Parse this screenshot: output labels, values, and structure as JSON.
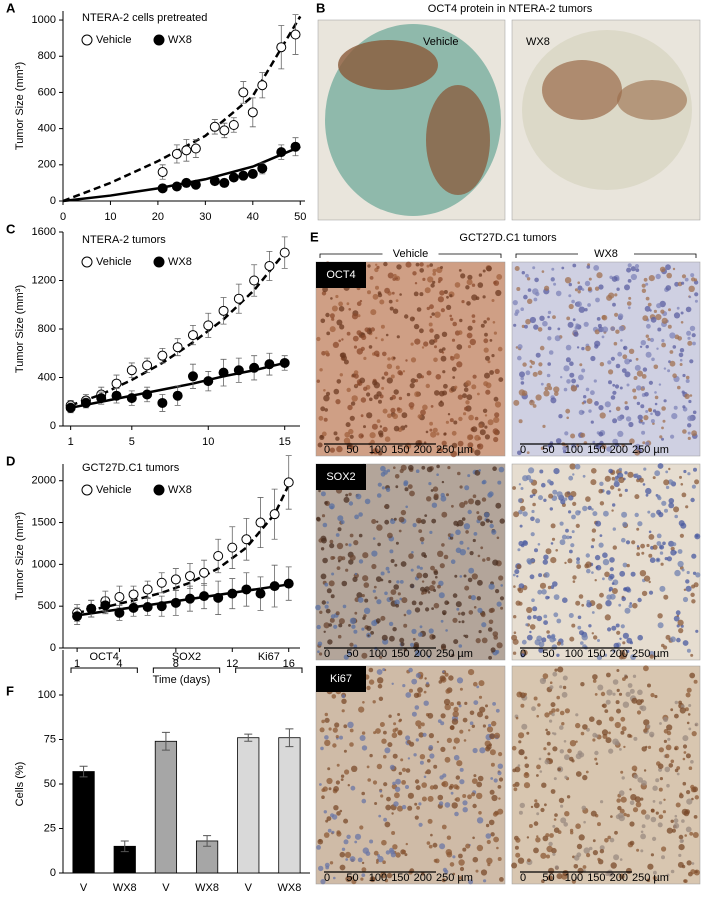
{
  "chart_data": [
    {
      "type": "scatter",
      "panel": "A",
      "legend_title": "NTERA-2 cells pretreated",
      "y_label": "Tumor Size (mm³)",
      "x": [
        21,
        24,
        26,
        28,
        32,
        34,
        36,
        38,
        40,
        42,
        46,
        49
      ],
      "series": [
        {
          "name": "Vehicle",
          "color": "#ffffff",
          "values": [
            160,
            260,
            280,
            290,
            410,
            390,
            420,
            600,
            490,
            640,
            850,
            920
          ],
          "errors": [
            40,
            50,
            60,
            50,
            40,
            40,
            40,
            60,
            80,
            70,
            120,
            110
          ],
          "fit": {
            "style": "dashed",
            "x": [
              0,
              10,
              20,
              30,
              40,
              50
            ],
            "values": [
              0,
              100,
              220,
              360,
              580,
              1020
            ]
          }
        },
        {
          "name": "WX8",
          "color": "#000000",
          "values": [
            70,
            80,
            100,
            90,
            110,
            100,
            130,
            140,
            150,
            180,
            270,
            300
          ],
          "errors": [
            20,
            20,
            20,
            20,
            20,
            20,
            20,
            20,
            20,
            30,
            40,
            50
          ],
          "fit": {
            "style": "solid",
            "x": [
              0,
              10,
              20,
              30,
              40,
              50
            ],
            "values": [
              0,
              30,
              70,
              120,
              190,
              300
            ]
          }
        }
      ],
      "xlim": [
        0,
        51
      ],
      "xticks": [
        0,
        10,
        20,
        30,
        40,
        50
      ],
      "ylim": [
        0,
        1050
      ],
      "yticks": [
        0,
        200,
        400,
        600,
        800,
        1000
      ]
    },
    {
      "type": "scatter",
      "panel": "C",
      "legend_title": "NTERA-2 tumors",
      "y_label": "Tumor Size (mm³)",
      "x": [
        1,
        2,
        3,
        4,
        5,
        6,
        7,
        8,
        9,
        10,
        11,
        12,
        13,
        14,
        15
      ],
      "series": [
        {
          "name": "Vehicle",
          "color": "#ffffff",
          "values": [
            170,
            210,
            260,
            350,
            460,
            500,
            580,
            650,
            750,
            830,
            950,
            1050,
            1200,
            1320,
            1430
          ],
          "errors": [
            40,
            50,
            60,
            70,
            60,
            60,
            60,
            70,
            80,
            100,
            110,
            120,
            130,
            120,
            130
          ],
          "fit": {
            "style": "dashed",
            "x": [
              1,
              3,
              5,
              7,
              9,
              11,
              13,
              15
            ],
            "values": [
              170,
              260,
              380,
              520,
              690,
              880,
              1120,
              1430
            ]
          }
        },
        {
          "name": "WX8",
          "color": "#000000",
          "values": [
            150,
            190,
            230,
            250,
            230,
            260,
            190,
            250,
            410,
            370,
            440,
            460,
            480,
            510,
            520
          ],
          "errors": [
            40,
            40,
            50,
            60,
            60,
            60,
            70,
            80,
            100,
            80,
            110,
            100,
            100,
            90,
            60
          ],
          "fit": {
            "style": "solid",
            "x": [
              1,
              3,
              5,
              7,
              9,
              11,
              13,
              15
            ],
            "values": [
              150,
              200,
              250,
              300,
              350,
              410,
              460,
              520
            ]
          }
        }
      ],
      "xlim": [
        0.5,
        16
      ],
      "xticks": [
        1,
        5,
        10,
        15
      ],
      "ylim": [
        0,
        1600
      ],
      "yticks": [
        0,
        400,
        800,
        1200,
        1600
      ]
    },
    {
      "type": "scatter",
      "panel": "D",
      "legend_title": "GCT27D.C1 tumors",
      "y_label": "Tumor Size (mm³)",
      "x_label": "Time (days)",
      "x": [
        1,
        2,
        3,
        4,
        5,
        6,
        7,
        8,
        9,
        10,
        11,
        12,
        13,
        14,
        15,
        16
      ],
      "series": [
        {
          "name": "Vehicle",
          "color": "#ffffff",
          "values": [
            420,
            470,
            560,
            610,
            640,
            700,
            780,
            820,
            860,
            900,
            1100,
            1200,
            1300,
            1500,
            1600,
            1980
          ],
          "errors": [
            100,
            100,
            120,
            130,
            100,
            100,
            120,
            130,
            150,
            150,
            200,
            250,
            250,
            300,
            300,
            320
          ],
          "fit": {
            "style": "dashed",
            "x": [
              1,
              3,
              5,
              7,
              9,
              11,
              13,
              15,
              16
            ],
            "values": [
              420,
              490,
              570,
              660,
              780,
              950,
              1200,
              1600,
              1950
            ]
          }
        },
        {
          "name": "WX8",
          "color": "#000000",
          "values": [
            380,
            470,
            510,
            420,
            480,
            490,
            500,
            540,
            590,
            620,
            600,
            650,
            700,
            650,
            740,
            770
          ],
          "errors": [
            100,
            100,
            100,
            90,
            100,
            100,
            120,
            150,
            150,
            150,
            200,
            180,
            200,
            200,
            250,
            200
          ],
          "fit": {
            "style": "solid",
            "x": [
              1,
              8,
              16
            ],
            "values": [
              390,
              560,
              760
            ]
          }
        }
      ],
      "xlim": [
        0,
        16.8
      ],
      "xticks": [
        1,
        4,
        8,
        12,
        16
      ],
      "ylim": [
        0,
        2200
      ],
      "yticks": [
        0,
        500,
        1000,
        1500,
        2000
      ]
    },
    {
      "type": "bar",
      "panel": "F",
      "y_label": "Cells (%)",
      "categories": [
        "V",
        "WX8",
        "V",
        "WX8",
        "V",
        "WX8"
      ],
      "groups": [
        "OCT4",
        "SOX2",
        "Ki67"
      ],
      "values": [
        57,
        15,
        74,
        18,
        76,
        76
      ],
      "errors": [
        3,
        3,
        5,
        3,
        2,
        5
      ],
      "colors": [
        "#000000",
        "#000000",
        "#a6a6a6",
        "#a6a6a6",
        "#d9d9d9",
        "#d9d9d9"
      ],
      "ylim": [
        0,
        100
      ],
      "yticks": [
        0,
        25,
        50,
        75,
        100
      ]
    }
  ],
  "panel_b": {
    "label": "B",
    "title": "OCT4 protein in NTERA-2 tumors",
    "images": [
      "Vehicle",
      "WX8"
    ]
  },
  "panel_e": {
    "label": "E",
    "title": "GCT27D.C1 tumors",
    "columns": [
      "Vehicle",
      "WX8"
    ],
    "rows": [
      "OCT4",
      "SOX2",
      "Ki67"
    ],
    "scale_labels": [
      "0",
      "50",
      "100",
      "150",
      "200",
      "250 µm"
    ]
  }
}
